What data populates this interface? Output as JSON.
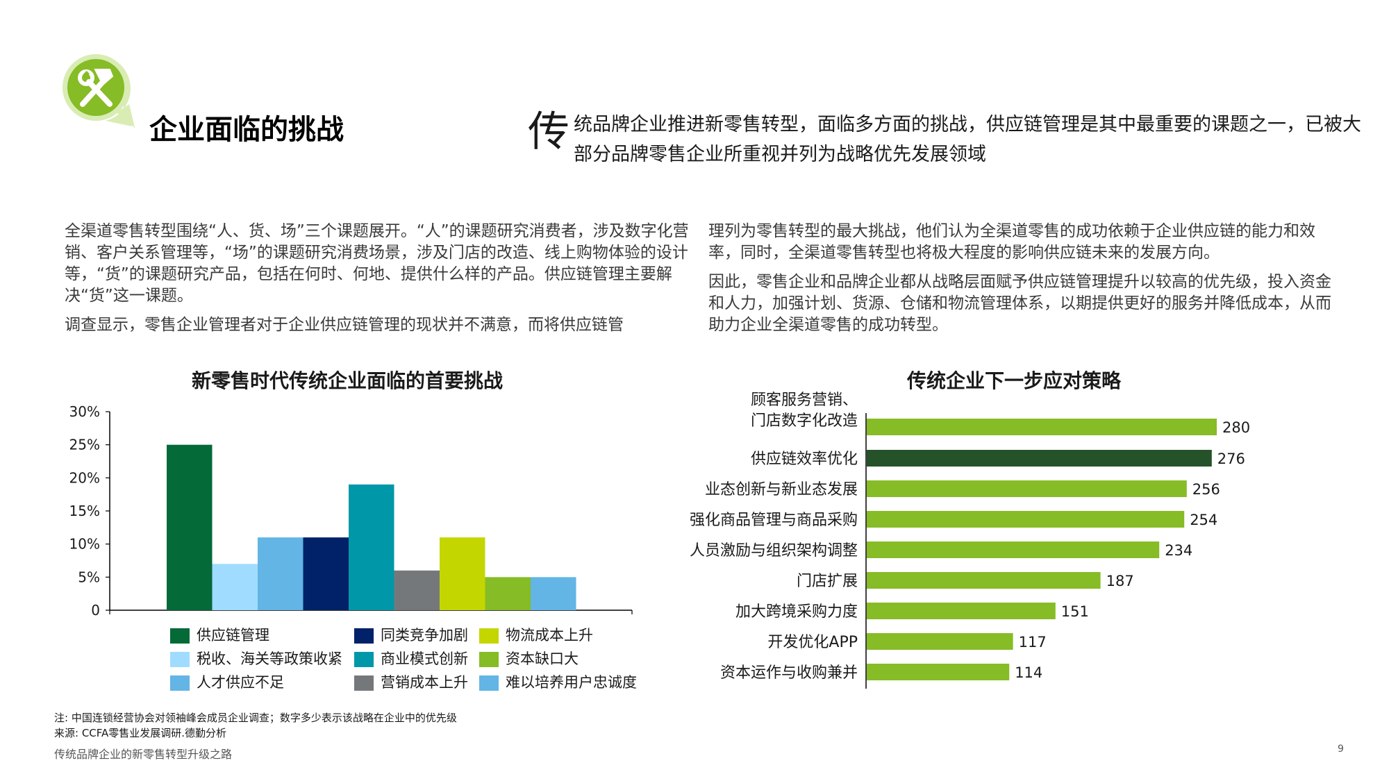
{
  "logo": {
    "icon": "hammer-wrench-icon",
    "color": "#86bc25"
  },
  "page": {
    "title": "企业面临的挑战",
    "intro_dropcap": "传",
    "intro_text": "统品牌企业推进新零售转型，面临多方面的挑战，供应链管理是其中最重要的课题之一，已被大部分品牌零售企业所重视并列为战略优先发展领域",
    "left_paragraphs": [
      "全渠道零售转型围绕“人、货、场”三个课题展开。“人”的课题研究消费者，涉及数字化营销、客户关系管理等，“场”的课题研究消费场景，涉及门店的改造、线上购物体验的设计等，“货”的课题研究产品，包括在何时、何地、提供什么样的产品。供应链管理主要解决“货”这一课题。",
      "调查显示，零售企业管理者对于企业供应链管理的现状并不满意，而将供应链管"
    ],
    "right_paragraphs": [
      "理列为零售转型的最大挑战，他们认为全渠道零售的成功依赖于企业供应链的能力和效率，同时，全渠道零售转型也将极大程度的影响供应链未来的发展方向。",
      "因此，零售企业和品牌企业都从战略层面赋予供应链管理提升以较高的优先级，投入资金和人力，加强计划、货源、仓储和物流管理体系，以期提供更好的服务并降低成本，从而助力企业全渠道零售的成功转型。"
    ],
    "notes": [
      "注: 中国连锁经营协会对领袖峰会成员企业调查；数字多少表示该战略在企业中的优先级",
      "来源: CCFA零售业发展调研.德勤分析"
    ],
    "footer": "传统品牌企业的新零售转型升级之路",
    "page_number": "9"
  },
  "chart_data": [
    {
      "type": "bar",
      "title": "新零售时代传统企业面临的首要挑战",
      "ylim": [
        0,
        0.3
      ],
      "yticks": [
        "0",
        "5%",
        "10%",
        "15%",
        "20%",
        "25%",
        "30%"
      ],
      "ytick_values": [
        0,
        0.05,
        0.1,
        0.15,
        0.2,
        0.25,
        0.3
      ],
      "grid": false,
      "legend_position": "bottom",
      "series": [
        {
          "name": "供应链管理",
          "value": 0.25,
          "color": "#046a38"
        },
        {
          "name": "税收、海关等政策收紧",
          "value": 0.07,
          "color": "#a0dcff"
        },
        {
          "name": "人才供应不足",
          "value": 0.11,
          "color": "#62b5e5"
        },
        {
          "name": "同类竞争加剧",
          "value": 0.11,
          "color": "#012169"
        },
        {
          "name": "商业模式创新",
          "value": 0.19,
          "color": "#0097a9"
        },
        {
          "name": "营销成本上升",
          "value": 0.06,
          "color": "#75787b"
        },
        {
          "name": "物流成本上升",
          "value": 0.11,
          "color": "#c4d600"
        },
        {
          "name": "资本缺口大",
          "value": 0.05,
          "color": "#86bc25"
        },
        {
          "name": "难以培养用户忠诚度",
          "value": 0.05,
          "color": "#62b5e5"
        }
      ]
    },
    {
      "type": "bar",
      "orientation": "horizontal",
      "title": "传统企业下一步应对策略",
      "xlim": [
        0,
        300
      ],
      "grid": false,
      "categories": [
        [
          "顾客服务营销、",
          "门店数字化改造"
        ],
        [
          "供应链效率优化"
        ],
        [
          "业态创新与新业态发展"
        ],
        [
          "强化商品管理与商品采购"
        ],
        [
          "人员激励与组织架构调整"
        ],
        [
          "门店扩展"
        ],
        [
          "加大跨境采购力度"
        ],
        [
          "开发优化APP"
        ],
        [
          "资本运作与收购兼并"
        ]
      ],
      "values": [
        280,
        276,
        256,
        254,
        234,
        187,
        151,
        117,
        114
      ],
      "colors": [
        "#86bc25",
        "#26522a",
        "#86bc25",
        "#86bc25",
        "#86bc25",
        "#86bc25",
        "#86bc25",
        "#86bc25",
        "#86bc25"
      ]
    }
  ]
}
